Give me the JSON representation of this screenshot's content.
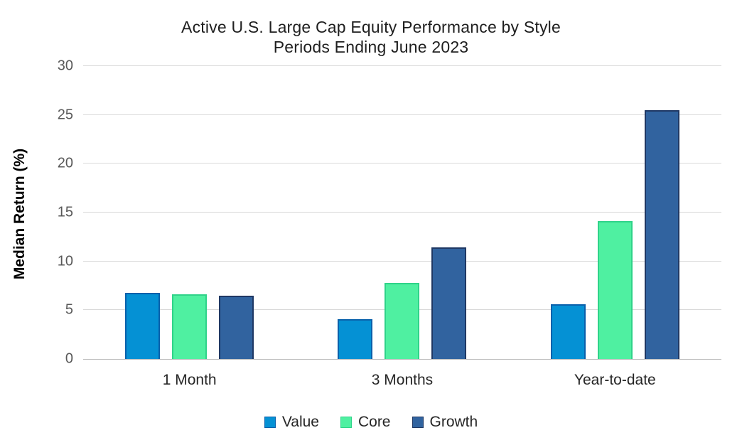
{
  "chart": {
    "title_line1": "Active U.S. Large Cap Equity Performance by Style",
    "title_line2": "Periods Ending June 2023",
    "ylabel": "Median Return (%)"
  },
  "chart_data": {
    "type": "bar",
    "title": "Active U.S. Large Cap Equity Performance by Style",
    "subtitle": "Periods Ending June 2023",
    "categories": [
      "1 Month",
      "3 Months",
      "Year-to-date"
    ],
    "series": [
      {
        "name": "Value",
        "color": "#0591d4",
        "border_color": "#0a61ab",
        "values": [
          6.8,
          4.1,
          5.6
        ]
      },
      {
        "name": "Core",
        "color": "#4ff0a1",
        "border_color": "#2fd389",
        "values": [
          6.6,
          7.8,
          14.1
        ]
      },
      {
        "name": "Growth",
        "color": "#31639f",
        "border_color": "#1f3864",
        "values": [
          6.5,
          11.4,
          25.5
        ]
      }
    ],
    "xlabel": "",
    "ylabel": "Median Return (%)",
    "ylim": [
      0,
      30
    ],
    "yticks": [
      0,
      5,
      10,
      15,
      20,
      25,
      30
    ],
    "grid": true,
    "grid_color": "#d9d9d9",
    "axis_tick_color": "#595959",
    "legend_position": "bottom"
  }
}
